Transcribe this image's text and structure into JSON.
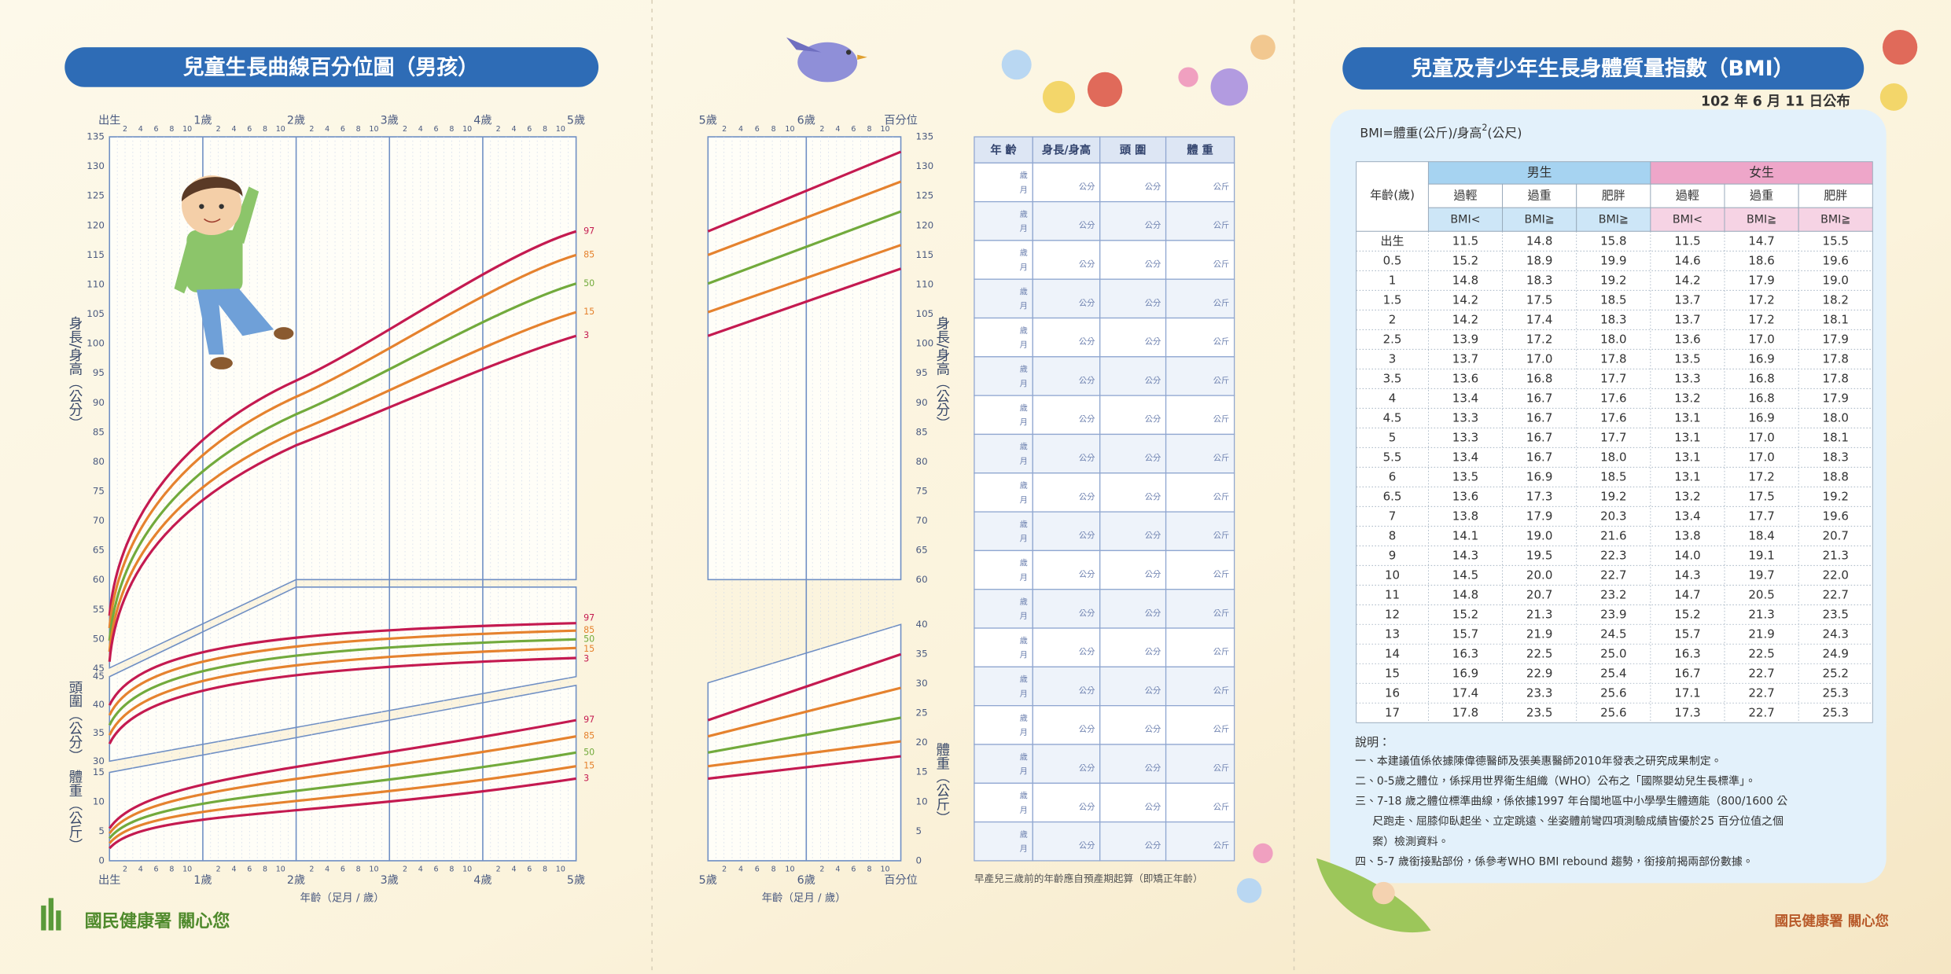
{
  "growth_chart": {
    "title": "兒童生長曲線百分位圖（男孩）",
    "age_labels": [
      "出生",
      "1歲",
      "2歲",
      "3歲",
      "4歲",
      "5歲"
    ],
    "month_labels": [
      "2",
      "4",
      "6",
      "8",
      "10"
    ],
    "height_ticks": [
      45,
      50,
      55,
      60,
      65,
      70,
      75,
      80,
      85,
      90,
      95,
      100,
      105,
      110,
      115,
      120,
      125,
      130,
      135
    ],
    "head_ticks": [
      30,
      35,
      40,
      45
    ],
    "weight_ticks": [
      0,
      5,
      10,
      15
    ],
    "height_label": "身長/身高（公分）",
    "head_label": "頭圍（公分）",
    "weight_label": "體重（公斤）",
    "percentiles": [
      "97",
      "85",
      "50",
      "15",
      "3"
    ],
    "x_label": "年齡（足月 / 歲）",
    "ext_age_labels": [
      "5歲",
      "6歲",
      "百分位"
    ],
    "ext_height_ticks": [
      60,
      65,
      70,
      75,
      80,
      85,
      90,
      95,
      100,
      105,
      110,
      115,
      120,
      125,
      130,
      135
    ],
    "ext_weight_ticks": [
      0,
      5,
      10,
      15,
      20,
      25,
      30,
      35,
      40
    ],
    "ext_height_label": "身長/身高（公分）",
    "ext_weight_label": "體重（公斤）"
  },
  "record_table": {
    "headers": [
      "年 齡",
      "身長/身高",
      "頭 圍",
      "體 重"
    ],
    "rows": [
      [
        "歲",
        "月",
        "公分",
        "公分",
        "公斤"
      ],
      [
        "歲",
        "月",
        "公分",
        "公分",
        "公斤"
      ],
      [
        "歲",
        "月",
        "公分",
        "公分",
        "公斤"
      ],
      [
        "歲",
        "月",
        "公分",
        "公分",
        "公斤"
      ],
      [
        "歲",
        "月",
        "公分",
        "公分",
        "公斤"
      ],
      [
        "歲",
        "月",
        "公分",
        "公分",
        "公斤"
      ],
      [
        "歲",
        "月",
        "公分",
        "公分",
        "公斤"
      ],
      [
        "歲",
        "月",
        "公分",
        "公分",
        "公斤"
      ],
      [
        "歲",
        "月",
        "公分",
        "公分",
        "公斤"
      ],
      [
        "歲",
        "月",
        "公分",
        "公分",
        "公斤"
      ],
      [
        "歲",
        "月",
        "公分",
        "公分",
        "公斤"
      ],
      [
        "歲",
        "月",
        "公分",
        "公分",
        "公斤"
      ],
      [
        "歲",
        "月",
        "公分",
        "公分",
        "公斤"
      ],
      [
        "歲",
        "月",
        "公分",
        "公分",
        "公斤"
      ],
      [
        "歲",
        "月",
        "公分",
        "公分",
        "公斤"
      ],
      [
        "歲",
        "月",
        "公分",
        "公分",
        "公斤"
      ],
      [
        "歲",
        "月",
        "公分",
        "公分",
        "公斤"
      ],
      [
        "歲",
        "月",
        "公分",
        "公分",
        "公斤"
      ]
    ],
    "note": "早產兒三歲前的年齡應自預產期起算（即矯正年齡）"
  },
  "bmi": {
    "title": "兒童及青少年生長身體質量指數（BMI）",
    "date": "102 年 6 月 11 日公布",
    "formula": [
      "BMI=體重(公斤)/身高",
      "2",
      "(公尺)"
    ],
    "age_header": "年齡(歲)",
    "male": "男生",
    "female": "女生",
    "categories": [
      "過輕",
      "過重",
      "肥胖",
      "過輕",
      "過重",
      "肥胖"
    ],
    "criteria": [
      "BMI<",
      "BMI≧",
      "BMI≧",
      "BMI<",
      "BMI≧",
      "BMI≧"
    ],
    "rows": [
      [
        "出生",
        "11.5",
        "14.8",
        "15.8",
        "11.5",
        "14.7",
        "15.5"
      ],
      [
        "0.5",
        "15.2",
        "18.9",
        "19.9",
        "14.6",
        "18.6",
        "19.6"
      ],
      [
        "1",
        "14.8",
        "18.3",
        "19.2",
        "14.2",
        "17.9",
        "19.0"
      ],
      [
        "1.5",
        "14.2",
        "17.5",
        "18.5",
        "13.7",
        "17.2",
        "18.2"
      ],
      [
        "2",
        "14.2",
        "17.4",
        "18.3",
        "13.7",
        "17.2",
        "18.1"
      ],
      [
        "2.5",
        "13.9",
        "17.2",
        "18.0",
        "13.6",
        "17.0",
        "17.9"
      ],
      [
        "3",
        "13.7",
        "17.0",
        "17.8",
        "13.5",
        "16.9",
        "17.8"
      ],
      [
        "3.5",
        "13.6",
        "16.8",
        "17.7",
        "13.3",
        "16.8",
        "17.8"
      ],
      [
        "4",
        "13.4",
        "16.7",
        "17.6",
        "13.2",
        "16.8",
        "17.9"
      ],
      [
        "4.5",
        "13.3",
        "16.7",
        "17.6",
        "13.1",
        "16.9",
        "18.0"
      ],
      [
        "5",
        "13.3",
        "16.7",
        "17.7",
        "13.1",
        "17.0",
        "18.1"
      ],
      [
        "5.5",
        "13.4",
        "16.7",
        "18.0",
        "13.1",
        "17.0",
        "18.3"
      ],
      [
        "6",
        "13.5",
        "16.9",
        "18.5",
        "13.1",
        "17.2",
        "18.8"
      ],
      [
        "6.5",
        "13.6",
        "17.3",
        "19.2",
        "13.2",
        "17.5",
        "19.2"
      ],
      [
        "7",
        "13.8",
        "17.9",
        "20.3",
        "13.4",
        "17.7",
        "19.6"
      ],
      [
        "8",
        "14.1",
        "19.0",
        "21.6",
        "13.8",
        "18.4",
        "20.7"
      ],
      [
        "9",
        "14.3",
        "19.5",
        "22.3",
        "14.0",
        "19.1",
        "21.3"
      ],
      [
        "10",
        "14.5",
        "20.0",
        "22.7",
        "14.3",
        "19.7",
        "22.0"
      ],
      [
        "11",
        "14.8",
        "20.7",
        "23.2",
        "14.7",
        "20.5",
        "22.7"
      ],
      [
        "12",
        "15.2",
        "21.3",
        "23.9",
        "15.2",
        "21.3",
        "23.5"
      ],
      [
        "13",
        "15.7",
        "21.9",
        "24.5",
        "15.7",
        "21.9",
        "24.3"
      ],
      [
        "14",
        "16.3",
        "22.5",
        "25.0",
        "16.3",
        "22.5",
        "24.9"
      ],
      [
        "15",
        "16.9",
        "22.9",
        "25.4",
        "16.7",
        "22.7",
        "25.2"
      ],
      [
        "16",
        "17.4",
        "23.3",
        "25.6",
        "17.1",
        "22.7",
        "25.3"
      ],
      [
        "17",
        "17.8",
        "23.5",
        "25.6",
        "17.3",
        "22.7",
        "25.3"
      ]
    ],
    "notes_heading": "說明：",
    "notes": [
      [
        "一、本建議值係依據陳偉德醫師及張美惠醫師2010年發表之研究成果制定。"
      ],
      [
        "二、0-5歲之體位，係採用世界衛生組織（WHO）公布之「國際嬰幼兒生長標準」。"
      ],
      [
        "三、7-18 歲之體位標準曲線，係依據1997 年台閩地區中小學學生體適能（800/1600 公",
        "尺跑走、屈膝仰臥起坐、立定跳遠、坐姿體前彎四項測驗成績皆優於25 百分位值之個",
        "案）檢測資料。"
      ],
      [
        "四、5-7 歲銜接點部份，係參考WHO BMI rebound 趨勢，銜接前揭兩部份數據。"
      ]
    ]
  },
  "footer_left": "國民健康署 關心您",
  "footer_right": "國民健康署 關心您"
}
